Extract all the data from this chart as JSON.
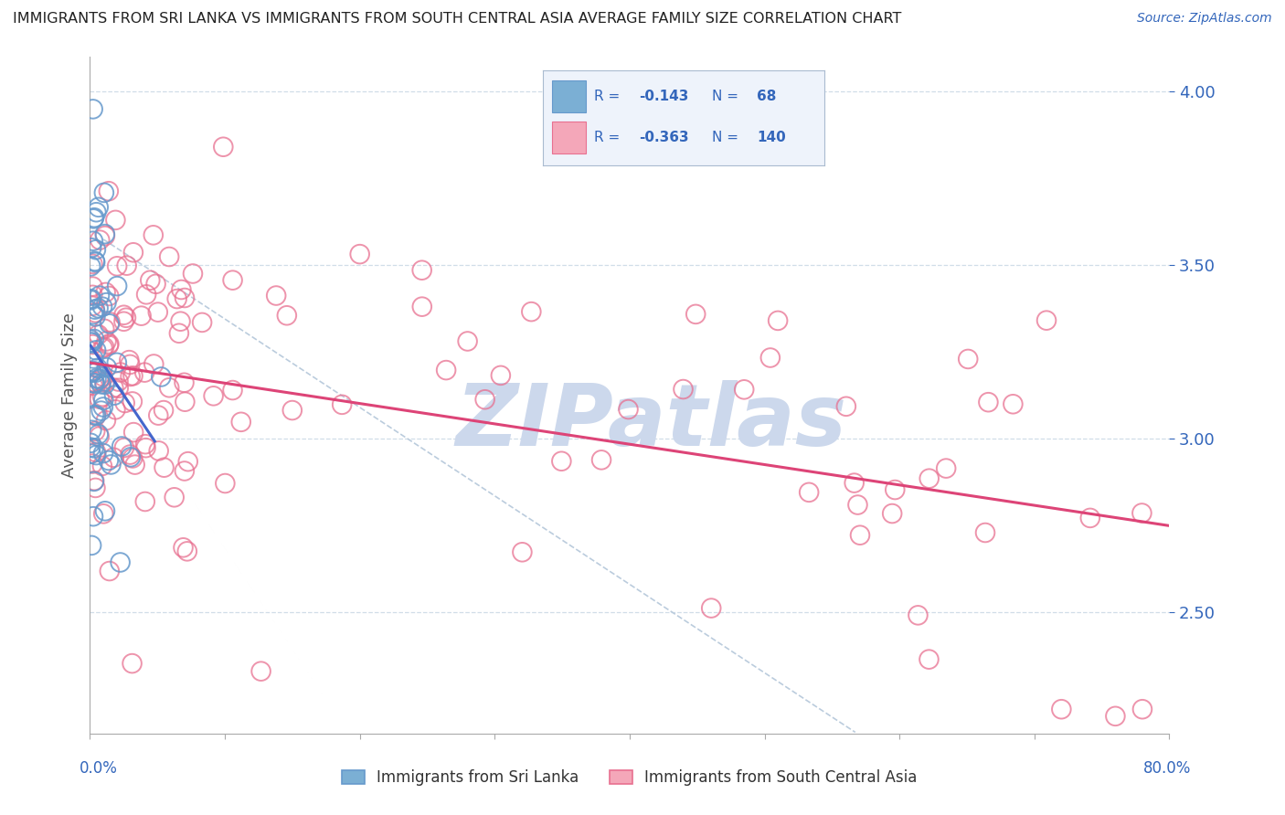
{
  "title": "IMMIGRANTS FROM SRI LANKA VS IMMIGRANTS FROM SOUTH CENTRAL ASIA AVERAGE FAMILY SIZE CORRELATION CHART",
  "source": "Source: ZipAtlas.com",
  "ylabel": "Average Family Size",
  "yticks": [
    2.5,
    3.0,
    3.5,
    4.0
  ],
  "xlim": [
    0.0,
    0.8
  ],
  "ylim": [
    2.15,
    4.1
  ],
  "xlabel_bottom_left": "Immigrants from Sri Lanka",
  "xlabel_bottom_right": "Immigrants from South Central Asia",
  "sri_lanka_color": "#7bafd4",
  "south_asia_color": "#f4a7b9",
  "sri_lanka_edge": "#6699cc",
  "south_asia_edge": "#e87090",
  "trendline_blue": "#4466cc",
  "trendline_pink": "#dd4477",
  "dashed_color": "#bbccdd",
  "watermark": "ZIPatlas",
  "watermark_color": "#ccd8ec",
  "legend_bg": "#eef3fb",
  "legend_border": "#aabbd0",
  "legend_text_color": "#3366bb",
  "legend_value_color": "#3366bb",
  "ylabel_color": "#555555",
  "ytick_color": "#3366bb",
  "xtick_label_color": "#3366bb",
  "grid_color": "#d0dde8",
  "title_color": "#222222",
  "source_color": "#3366bb",
  "bottom_legend_color": "#333333",
  "sri_lanka_R": -0.143,
  "sri_lanka_N": 68,
  "south_asia_R": -0.363,
  "south_asia_N": 140,
  "sl_seed": 77,
  "sa_seed": 99
}
